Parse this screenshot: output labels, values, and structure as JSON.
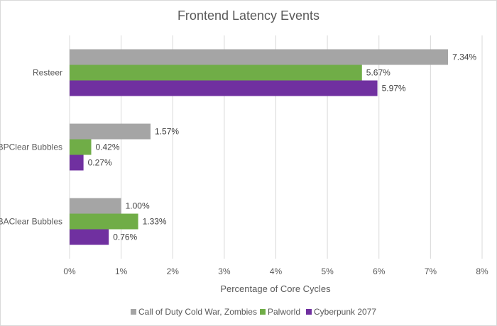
{
  "chart_data": {
    "type": "bar",
    "orientation": "horizontal",
    "title": "Frontend Latency Events",
    "xlabel": "Percentage of Core Cycles",
    "ylabel": "",
    "xlim": [
      0,
      8
    ],
    "x_ticks": [
      "0%",
      "1%",
      "2%",
      "3%",
      "4%",
      "5%",
      "6%",
      "7%",
      "8%"
    ],
    "grid": "vertical",
    "legend_position": "bottom",
    "categories": [
      "Resteer",
      "BPClear Bubbles",
      "BAClear Bubbles"
    ],
    "series": [
      {
        "name": "Call of Duty Cold War, Zombies",
        "color": "#a5a5a5",
        "values": [
          7.34,
          1.57,
          1.0
        ],
        "labels": [
          "7.34%",
          "1.57%",
          "1.00%"
        ]
      },
      {
        "name": "Palworld",
        "color": "#70ad47",
        "values": [
          5.67,
          0.42,
          1.33
        ],
        "labels": [
          "5.67%",
          "0.42%",
          "1.33%"
        ]
      },
      {
        "name": "Cyberpunk 2077",
        "color": "#7030a0",
        "values": [
          5.97,
          0.27,
          0.76
        ],
        "labels": [
          "5.97%",
          "0.27%",
          "0.76%"
        ]
      }
    ]
  }
}
